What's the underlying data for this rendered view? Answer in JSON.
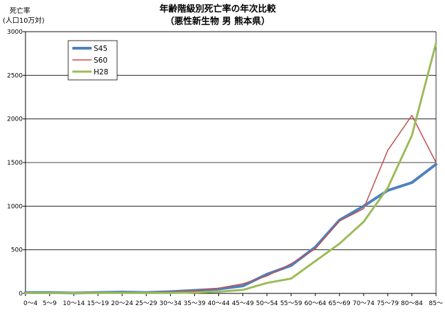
{
  "chart_data": {
    "type": "line",
    "title": "年齢階級別死亡率の年次比較",
    "subtitle": "（悪性新生物 男 熊本県）",
    "ylabel_line1": "死亡率",
    "ylabel_line2": "(人口10万対)",
    "xlabel": "",
    "ylim": [
      0,
      3000
    ],
    "yticks": [
      0,
      500,
      1000,
      1500,
      2000,
      2500,
      3000
    ],
    "ytick_labels": [
      "0",
      "500",
      "1000",
      "1500",
      "2000",
      "2500",
      "3000"
    ],
    "grid": true,
    "legend_position": "top-left",
    "categories": [
      "0〜4",
      "5〜9",
      "10〜14",
      "15〜19",
      "20〜24",
      "25〜29",
      "30〜34",
      "35〜39",
      "40〜44",
      "45〜49",
      "50〜54",
      "55〜59",
      "60〜64",
      "65〜69",
      "70〜74",
      "75〜79",
      "80〜84",
      "85〜"
    ],
    "series": [
      {
        "name": "S45",
        "color": "#4F81BD",
        "width": 4,
        "values": [
          10,
          10,
          5,
          10,
          15,
          10,
          20,
          35,
          50,
          85,
          220,
          320,
          530,
          840,
          1000,
          1180,
          1270,
          1480
        ]
      },
      {
        "name": "S60",
        "color": "#C0504D",
        "width": 1.5,
        "values": [
          10,
          10,
          5,
          10,
          10,
          10,
          15,
          30,
          60,
          110,
          200,
          340,
          510,
          830,
          970,
          1640,
          2040,
          1500
        ]
      },
      {
        "name": "H28",
        "color": "#9BBB59",
        "width": 3,
        "values": [
          5,
          5,
          5,
          5,
          5,
          5,
          5,
          10,
          20,
          40,
          120,
          170,
          370,
          570,
          820,
          1210,
          1810,
          2870
        ]
      }
    ]
  }
}
